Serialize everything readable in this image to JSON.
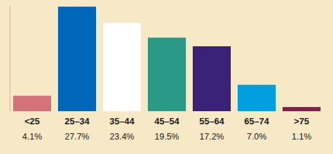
{
  "chart_data": {
    "type": "bar",
    "categories": [
      "<25",
      "25–34",
      "35–44",
      "45–54",
      "55–64",
      "65–74",
      ">75"
    ],
    "values": [
      4.1,
      27.7,
      23.4,
      19.5,
      17.2,
      7.0,
      1.1
    ],
    "value_labels": [
      "4.1%",
      "27.7%",
      "23.4%",
      "19.5%",
      "17.2%",
      "7.0%",
      "1.1%"
    ],
    "colors": [
      "#d4737a",
      "#0066b8",
      "#ffffff",
      "#2a9a87",
      "#3a2278",
      "#009fe0",
      "#8b1a4e"
    ],
    "ylim": [
      0,
      28
    ],
    "data_labels": true,
    "tick_labels": "x",
    "grid": false
  }
}
